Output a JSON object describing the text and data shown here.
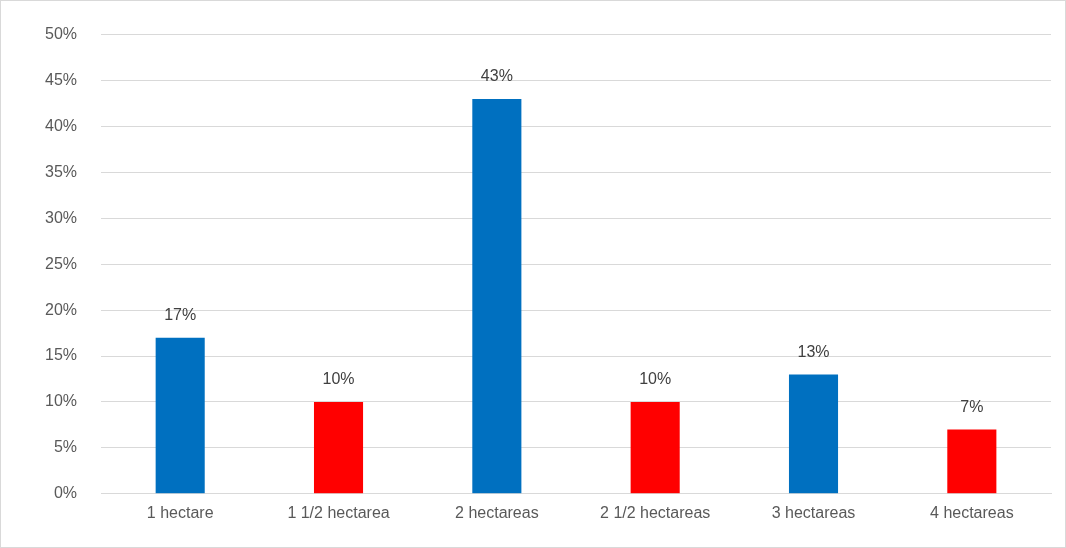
{
  "chart_data": {
    "type": "bar",
    "categories": [
      "1 hectare",
      "1 1/2 hectarea",
      "2 hectareas",
      "2 1/2 hectareas",
      "3 hectareas",
      "4 hectareas"
    ],
    "values": [
      17,
      10,
      43,
      10,
      13,
      7
    ],
    "colors": [
      "#0070c0",
      "#ff0000",
      "#0070c0",
      "#ff0000",
      "#0070c0",
      "#ff0000"
    ],
    "value_labels": [
      "17%",
      "10%",
      "43%",
      "10%",
      "13%",
      "7%"
    ],
    "ylim": [
      0,
      50
    ],
    "yticks": [
      {
        "value": 0,
        "label": "0%"
      },
      {
        "value": 5,
        "label": "5%"
      },
      {
        "value": 10,
        "label": "10%"
      },
      {
        "value": 15,
        "label": "15%"
      },
      {
        "value": 20,
        "label": "20%"
      },
      {
        "value": 25,
        "label": "25%"
      },
      {
        "value": 30,
        "label": "30%"
      },
      {
        "value": 35,
        "label": "35%"
      },
      {
        "value": 40,
        "label": "40%"
      },
      {
        "value": 45,
        "label": "45%"
      },
      {
        "value": 50,
        "label": "50%"
      }
    ],
    "grid": "y",
    "legend": false
  }
}
